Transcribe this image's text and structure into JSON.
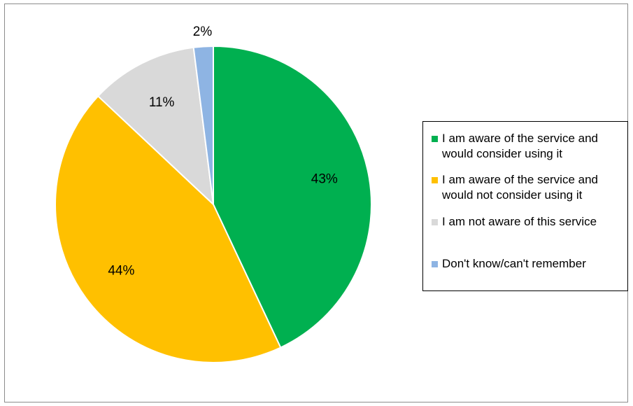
{
  "chart_data": {
    "type": "pie",
    "title": "",
    "slices": [
      {
        "label": "I am aware of the service and would consider using it",
        "value": 43,
        "value_label": "43%",
        "color": "#00b050"
      },
      {
        "label": "I am aware of the service and would not consider using it",
        "value": 44,
        "value_label": "44%",
        "color": "#ffc000"
      },
      {
        "label": "I am not aware of this service",
        "value": 11,
        "value_label": "11%",
        "color": "#d9d9d9"
      },
      {
        "label": "Don't know/can't remember",
        "value": 2,
        "value_label": "2%",
        "color": "#8eb4e3"
      }
    ],
    "start_angle": "12 o'clock",
    "direction": "clockwise",
    "legend_position": "right"
  }
}
